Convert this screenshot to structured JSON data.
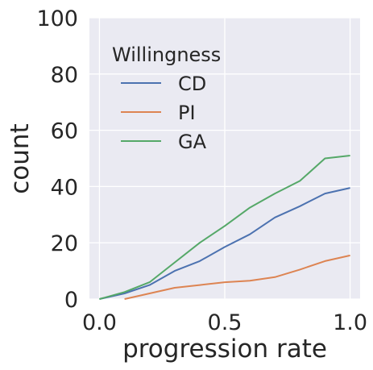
{
  "chart_data": {
    "type": "line",
    "title": "",
    "xlabel": "progression rate",
    "ylabel": "count",
    "xlim": [
      -0.04,
      1.04
    ],
    "ylim": [
      0,
      100
    ],
    "xticks": [
      "0.0",
      "0.5",
      "1.0"
    ],
    "yticks": [
      "0",
      "20",
      "40",
      "60",
      "80",
      "100"
    ],
    "grid": true,
    "background": "#eaeaf2",
    "legend": {
      "title": "Willingness",
      "placement": "top-left"
    },
    "x": [
      0.0,
      0.1,
      0.2,
      0.3,
      0.4,
      0.5,
      0.6,
      0.7,
      0.8,
      0.9,
      1.0
    ],
    "series": [
      {
        "name": "CD",
        "color": "#4c72b0",
        "values": [
          0,
          2,
          5,
          10,
          13.5,
          18.5,
          23,
          29,
          33,
          37.5,
          39.5
        ]
      },
      {
        "name": "PI",
        "color": "#dd8452",
        "values": [
          null,
          0,
          2,
          4,
          5,
          6,
          6.5,
          7.8,
          10.5,
          13.5,
          15.5
        ]
      },
      {
        "name": "GA",
        "color": "#55a868",
        "values": [
          0,
          2.5,
          6,
          13,
          20,
          26,
          32.5,
          37.5,
          42,
          50,
          51
        ]
      }
    ]
  }
}
